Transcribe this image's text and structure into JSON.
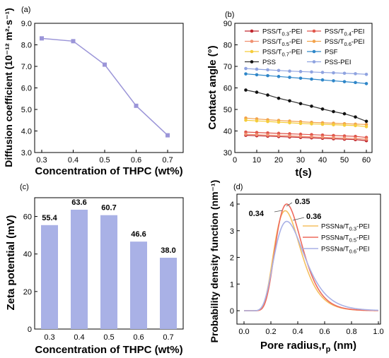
{
  "chart_data": [
    {
      "panel": "(a)",
      "type": "line",
      "xlabel": "Concentration of THPC (wt%)",
      "ylabel": "Diffusion coefficient (10⁻¹² m²·s⁻¹)",
      "x": [
        0.3,
        0.4,
        0.5,
        0.6,
        0.7
      ],
      "y": [
        8.3,
        8.17,
        7.08,
        5.17,
        3.8
      ],
      "xlim": [
        0.3,
        0.7
      ],
      "ylim": [
        3.0,
        9.0
      ],
      "xticks": [
        "0.3",
        "0.4",
        "0.5",
        "0.6",
        "0.7"
      ],
      "yticks": [
        "3.0",
        "4.0",
        "5.0",
        "6.0",
        "7.0",
        "8.0",
        "9.0"
      ],
      "color": "#9b95d8"
    },
    {
      "panel": "(b)",
      "type": "line",
      "xlabel": "t(s)",
      "ylabel": "Contact angle (°)",
      "x": [
        5,
        10,
        15,
        20,
        25,
        30,
        35,
        40,
        45,
        50,
        55,
        60
      ],
      "xlim": [
        0,
        60
      ],
      "ylim": [
        30,
        90
      ],
      "xticks": [
        "0",
        "10",
        "20",
        "30",
        "40",
        "50",
        "60"
      ],
      "yticks": [
        "30",
        "40",
        "50",
        "60",
        "70",
        "80",
        "90"
      ],
      "legend_position": "top",
      "series": [
        {
          "name": "PSS/T0.3-PEI",
          "sub": "0.3",
          "color": "#c0262d",
          "marker": "#c0262d",
          "y": [
            38.0,
            37.8,
            37.6,
            37.4,
            37.2,
            37.0,
            36.8,
            36.6,
            36.4,
            36.2,
            36.0,
            35.5
          ]
        },
        {
          "name": "PSS/T0.4-PEI",
          "sub": "0.4",
          "color": "#e0554a",
          "marker": "#e0554a",
          "y": [
            39.5,
            39.3,
            39.1,
            38.9,
            38.7,
            38.5,
            38.3,
            38.1,
            37.9,
            37.7,
            37.5,
            37.0
          ]
        },
        {
          "name": "PSS/T0.5-PEI",
          "sub": "0.5",
          "color": "#f09070",
          "marker": "#f09070",
          "y": [
            38.5,
            38.3,
            38.1,
            37.9,
            37.7,
            37.5,
            37.3,
            37.1,
            36.9,
            36.7,
            36.5,
            36.2
          ]
        },
        {
          "name": "PSS/T0.6-PEI",
          "sub": "0.6",
          "color": "#f2a24a",
          "marker": "#f2a24a",
          "y": [
            46.0,
            45.6,
            45.2,
            44.9,
            44.6,
            44.3,
            44.0,
            43.8,
            43.6,
            43.4,
            43.2,
            43.0
          ]
        },
        {
          "name": "PSS/T0.7-PEI",
          "sub": "0.7",
          "color": "#f5cc3a",
          "marker": "#f5cc3a",
          "y": [
            45.0,
            44.7,
            44.4,
            44.1,
            43.8,
            43.5,
            43.3,
            43.1,
            42.9,
            42.7,
            42.5,
            42.0
          ]
        },
        {
          "name": "PSF",
          "sub": "",
          "color": "#2e86c8",
          "marker": "#2e86c8",
          "y": [
            66.5,
            66.1,
            65.7,
            65.3,
            64.9,
            64.5,
            64.1,
            63.7,
            63.3,
            62.9,
            62.5,
            62.0
          ]
        },
        {
          "name": "PSS",
          "sub": "",
          "color": "#333333",
          "marker": "#111111",
          "y": [
            59.0,
            58.0,
            56.7,
            55.2,
            54.0,
            52.7,
            51.5,
            50.2,
            49.0,
            48.0,
            46.5,
            44.5
          ]
        },
        {
          "name": "PSS-PEI",
          "sub": "",
          "color": "#8fa3e0",
          "marker": "#8fa3e0",
          "y": [
            69.0,
            68.7,
            68.4,
            68.1,
            67.8,
            67.6,
            67.4,
            67.2,
            67.0,
            66.8,
            66.6,
            66.3
          ]
        }
      ]
    },
    {
      "panel": "(c)",
      "type": "bar",
      "xlabel": "Concentration of THPC (wt%)",
      "ylabel": "Zeta potential (mV)",
      "categories": [
        "0.3",
        "0.4",
        "0.5",
        "0.6",
        "0.7"
      ],
      "values": [
        55.4,
        63.6,
        60.7,
        46.6,
        38.0
      ],
      "labels": [
        "55.4",
        "63.6",
        "60.7",
        "46.6",
        "38.0"
      ],
      "ylim": [
        0,
        70
      ],
      "yticks": [
        "0",
        "20",
        "40",
        "60"
      ],
      "color": "#a9b1e6"
    },
    {
      "panel": "(d)",
      "type": "line",
      "xlabel": "Pore radius,r",
      "xlabel_sub": "p",
      "xlabel_unit": " (nm)",
      "ylabel": "Probability density function (nm⁻¹)",
      "xlim": [
        -0.05,
        1.0
      ],
      "ylim": [
        -0.2,
        4.4
      ],
      "xticks": [
        "0.0",
        "0.2",
        "0.4",
        "0.6",
        "0.8",
        "1.0"
      ],
      "yticks": [
        "0",
        "1",
        "2",
        "3",
        "4"
      ],
      "legend_position": "right",
      "peak_labels": [
        "0.34",
        "0.35",
        "0.36"
      ],
      "series": [
        {
          "name": "PSSNa/T0.3-PEI",
          "sub": "0.3",
          "color": "#f5c060",
          "mu": 0.34,
          "sigma": 0.32,
          "peak": 3.75
        },
        {
          "name": "PSSNa/T0.5-PEI",
          "sub": "0.5",
          "color": "#ee6a5c",
          "mu": 0.35,
          "sigma": 0.31,
          "peak": 4.0
        },
        {
          "name": "PSSNa/T0.6-PEI",
          "sub": "0.6",
          "color": "#a9b1e6",
          "mu": 0.36,
          "sigma": 0.35,
          "peak": 3.35
        }
      ]
    }
  ]
}
